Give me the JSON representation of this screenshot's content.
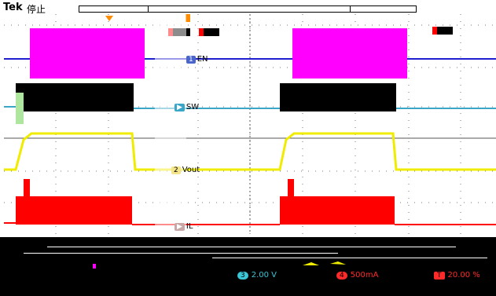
{
  "header": {
    "brand": "Tek",
    "state": "停止"
  },
  "channels": {
    "en": {
      "marker": "1",
      "label": "EN",
      "color": "#1a1aff"
    },
    "sw": {
      "marker": "",
      "label": "SW",
      "color": "#4aa7d6"
    },
    "vout": {
      "marker": "2",
      "label": "Vout",
      "color": "#e8e400"
    },
    "il": {
      "marker": "",
      "label": "IL",
      "color": "#ff0000"
    }
  },
  "settings": {
    "ch3_badge": "3",
    "ch3_scale": "2.00 V",
    "ch4_badge": "4",
    "ch4_scale": "500mA",
    "pct_badge": "T",
    "pct_value": "20.00 %"
  },
  "colors": {
    "magenta": "#ff00ff",
    "yellow": "#f0ec00",
    "red": "#ff0000",
    "cyan": "#3aa6c8",
    "blue": "#1f1fcf",
    "grid": "#6a6a6a"
  }
}
